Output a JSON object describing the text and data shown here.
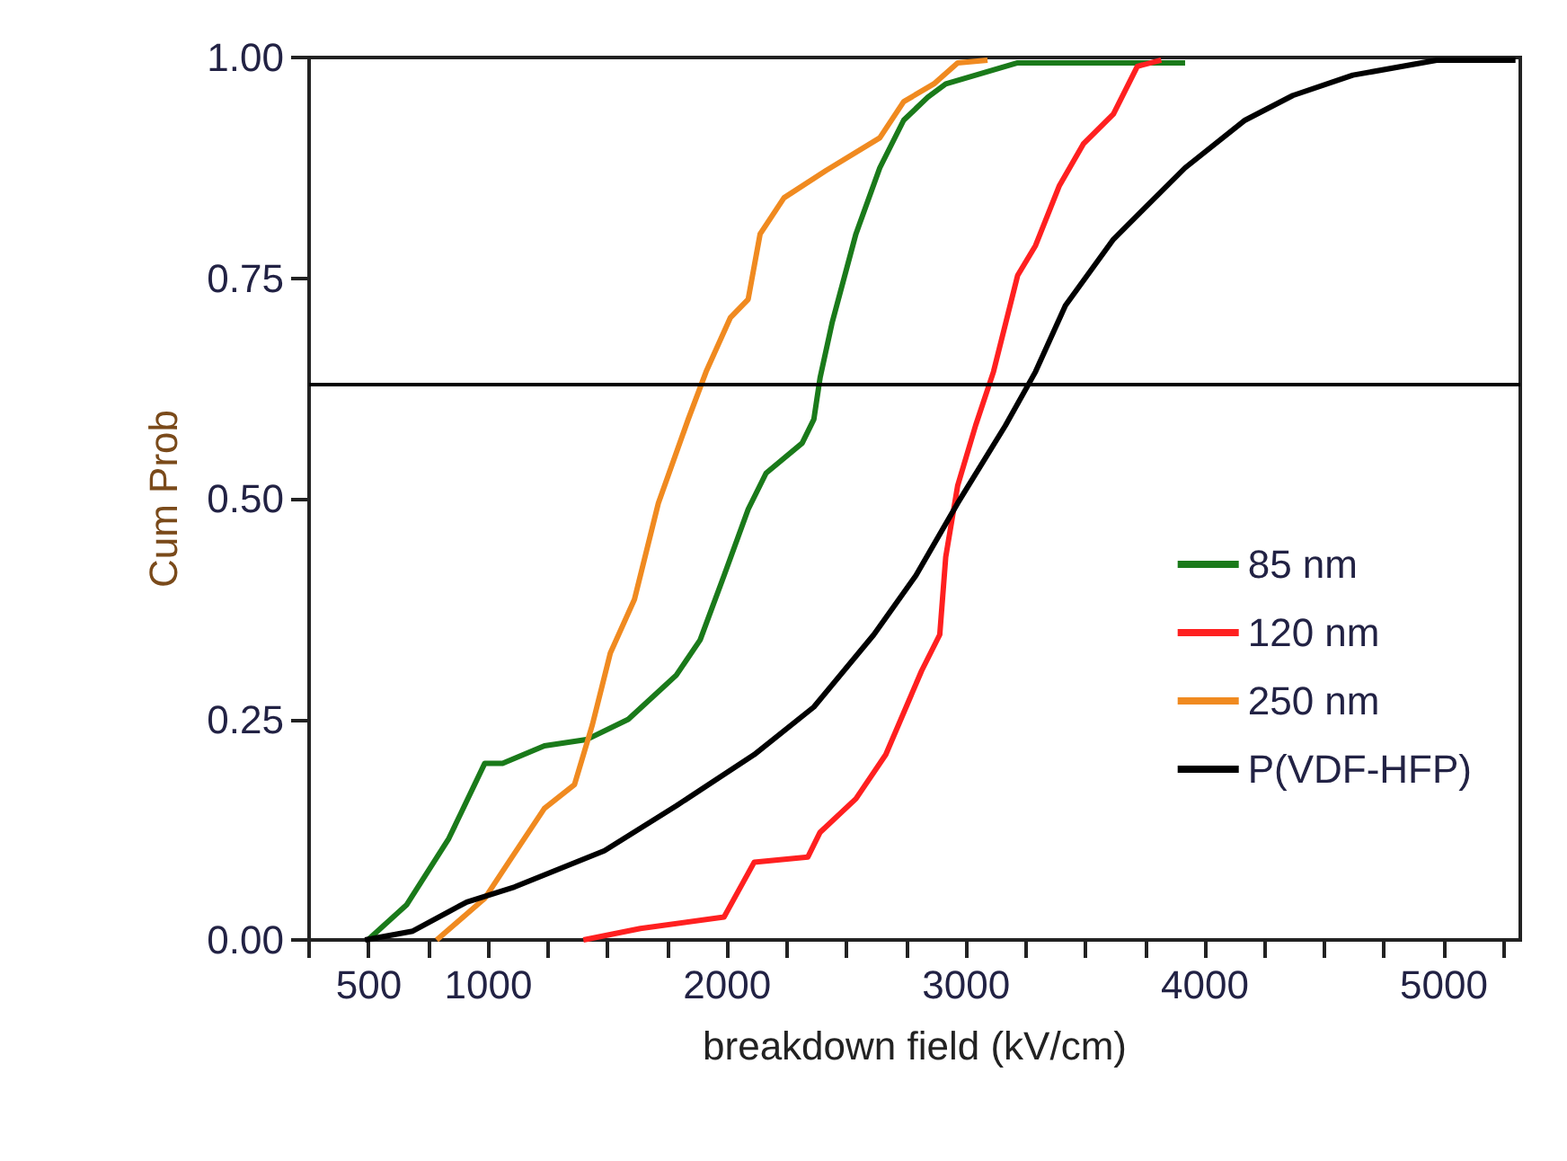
{
  "chart_data": {
    "type": "line",
    "xlabel": "breakdown field (kV/cm)",
    "ylabel": "Cum Prob",
    "xlim": [
      250,
      5320
    ],
    "ylim": [
      0,
      1
    ],
    "xticks": [
      {
        "value": 250,
        "label": null
      },
      500,
      {
        "value": 750,
        "label": null
      },
      1000,
      {
        "value": 1250,
        "label": null
      },
      {
        "value": 1500,
        "label": null
      },
      {
        "value": 1750,
        "label": null
      },
      2000,
      {
        "value": 2250,
        "label": null
      },
      {
        "value": 2500,
        "label": null
      },
      {
        "value": 2750,
        "label": null
      },
      3000,
      {
        "value": 3250,
        "label": null
      },
      {
        "value": 3500,
        "label": null
      },
      {
        "value": 3750,
        "label": null
      },
      4000,
      {
        "value": 4250,
        "label": null
      },
      {
        "value": 4500,
        "label": null
      },
      {
        "value": 4750,
        "label": null
      },
      5000,
      {
        "value": 5250,
        "label": null
      }
    ],
    "yticks": [
      {
        "value": 0,
        "label": "0.00"
      },
      {
        "value": 0.25,
        "label": "0.25"
      },
      {
        "value": 0.5,
        "label": "0.50"
      },
      {
        "value": 0.75,
        "label": "0.75"
      },
      {
        "value": 1,
        "label": "1.00"
      }
    ],
    "grid": false,
    "legend": "right",
    "marker": "none",
    "line_style": "solid",
    "ref_lines": [
      {
        "axis": "y",
        "value": 0.632,
        "color": "#000000"
      }
    ],
    "series": [
      {
        "name": "85 nm",
        "color": "#1a7a1a",
        "x": [
          496,
          659,
          835,
          985,
          1060,
          1235,
          1411,
          1586,
          1787,
          1887,
          1987,
          2088,
          2163,
          2314,
          2363,
          2389,
          2439,
          2539,
          2639,
          2739,
          2840,
          2915,
          3216,
          3917
        ],
        "values": [
          0,
          0.04,
          0.115,
          0.2,
          0.2,
          0.22,
          0.227,
          0.25,
          0.3,
          0.34,
          0.413,
          0.488,
          0.529,
          0.563,
          0.59,
          0.637,
          0.699,
          0.8,
          0.875,
          0.929,
          0.955,
          0.97,
          0.994,
          0.994
        ]
      },
      {
        "name": "120 nm",
        "color": "#ff2020",
        "x": [
          1398,
          1637,
          1987,
          2113,
          2338,
          2389,
          2539,
          2664,
          2814,
          2890,
          2915,
          2965,
          3040,
          3115,
          3216,
          3291,
          3391,
          3491,
          3617,
          3717,
          3817
        ],
        "values": [
          0,
          0.013,
          0.026,
          0.088,
          0.094,
          0.122,
          0.16,
          0.21,
          0.305,
          0.346,
          0.434,
          0.515,
          0.583,
          0.644,
          0.753,
          0.787,
          0.855,
          0.902,
          0.936,
          0.99,
          0.997
        ]
      },
      {
        "name": "250 nm",
        "color": "#f08a20",
        "x": [
          784,
          985,
          1085,
          1235,
          1361,
          1436,
          1511,
          1612,
          1712,
          1837,
          1912,
          2013,
          2088,
          2138,
          2238,
          2414,
          2639,
          2739,
          2865,
          2965,
          3090
        ],
        "values": [
          0,
          0.047,
          0.088,
          0.149,
          0.176,
          0.244,
          0.325,
          0.386,
          0.495,
          0.59,
          0.644,
          0.705,
          0.726,
          0.8,
          0.841,
          0.872,
          0.909,
          0.95,
          0.97,
          0.994,
          0.997
        ]
      },
      {
        "name": "P(VDF-HFP)",
        "color": "#000000",
        "x": [
          484,
          684,
          910,
          1110,
          1486,
          1787,
          2113,
          2363,
          2614,
          2790,
          2965,
          3165,
          3291,
          3416,
          3617,
          3917,
          4168,
          4368,
          4619,
          4970,
          5300
        ],
        "values": [
          0,
          0.01,
          0.043,
          0.06,
          0.101,
          0.152,
          0.21,
          0.264,
          0.346,
          0.413,
          0.495,
          0.583,
          0.644,
          0.719,
          0.794,
          0.875,
          0.929,
          0.957,
          0.98,
          0.997,
          0.997
        ]
      }
    ]
  }
}
